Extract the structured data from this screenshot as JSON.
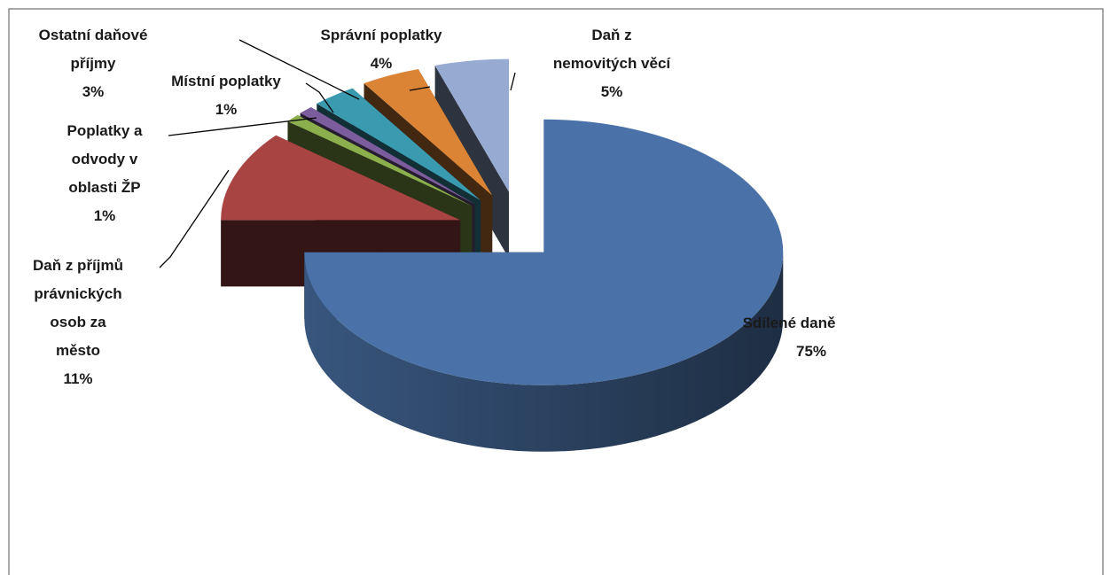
{
  "chart_data": {
    "type": "pie3d",
    "categories": [
      "Sdílené daně",
      "Daň z příjmů\nprávnických\nosob za\nměsto",
      "Poplatky a\nodvody v\noblasti ŽP",
      "Místní poplatky",
      "Ostatní daňové\npříjmy",
      "Správní poplatky",
      "Daň z\nnemovitých věcí"
    ],
    "values": [
      75,
      11,
      1,
      1,
      3,
      4,
      5
    ],
    "value_labels": [
      "75%",
      "11%",
      "1%",
      "1%",
      "3%",
      "4%",
      "5%"
    ],
    "colors": [
      "#4a72a8",
      "#a84543",
      "#8caf4e",
      "#7b5c9c",
      "#3a9bb0",
      "#db8436",
      "#96aad2"
    ]
  }
}
